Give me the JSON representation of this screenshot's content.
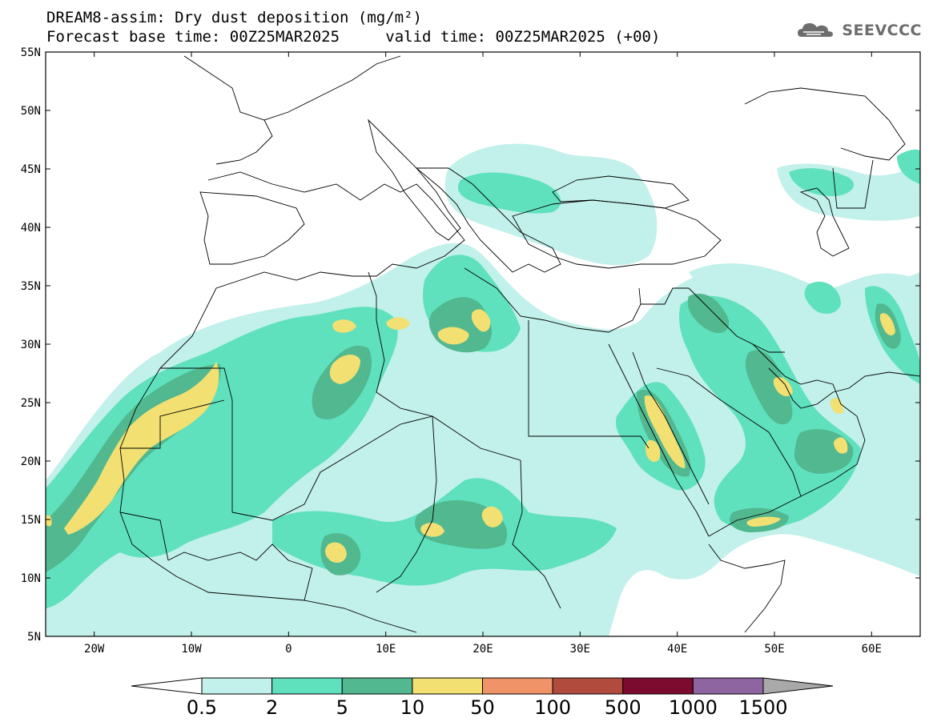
{
  "title_line1": "DREAM8-assim: Dry dust deposition (mg/m²)",
  "base_time_label": "Forecast base time: 00Z25MAR2025",
  "valid_time_label": "valid time: 00Z25MAR2025 (+00)",
  "logo_text": "SEEVCCC",
  "lat_labels": [
    "55N",
    "50N",
    "45N",
    "40N",
    "35N",
    "30N",
    "25N",
    "20N",
    "15N",
    "10N",
    "5N"
  ],
  "lon_labels": [
    "20W",
    "10W",
    "0",
    "10E",
    "20E",
    "30E",
    "40E",
    "50E",
    "60E"
  ],
  "colorbar": {
    "labels": [
      "0.5",
      "2",
      "5",
      "10",
      "50",
      "100",
      "500",
      "1000",
      "1500"
    ],
    "colors": [
      "#c2f0ea",
      "#5fe1bd",
      "#51b88f",
      "#f2e072",
      "#f09368",
      "#b04b3d",
      "#7c0b2f",
      "#8e64a1"
    ],
    "left_arrow_color": "#ffffff",
    "right_arrow_color": "#a9a9a9"
  },
  "map": {
    "lon_range": [
      -25,
      65
    ],
    "lat_range": [
      5,
      55
    ],
    "level_colors": {
      "l1": "#c2f0ea",
      "l2": "#5fe1bd",
      "l3": "#51b88f",
      "l4": "#f2e072"
    }
  }
}
